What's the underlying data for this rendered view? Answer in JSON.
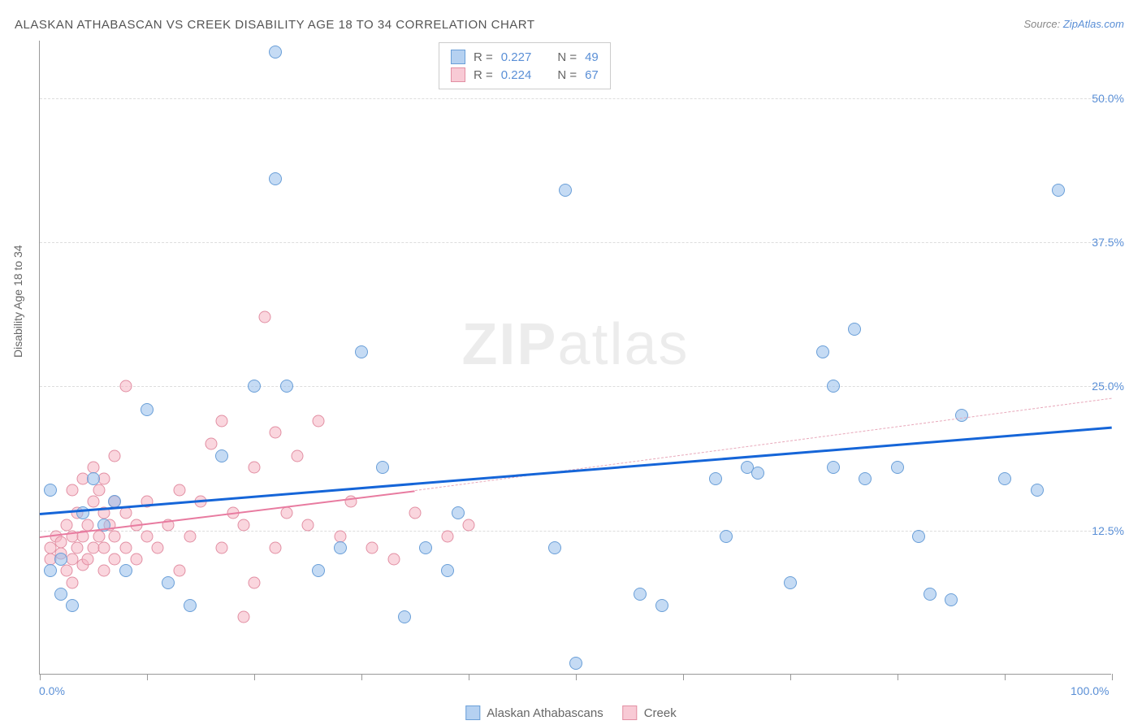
{
  "title": "ALASKAN ATHABASCAN VS CREEK DISABILITY AGE 18 TO 34 CORRELATION CHART",
  "source_prefix": "Source: ",
  "source_link": "ZipAtlas.com",
  "ylabel": "Disability Age 18 to 34",
  "watermark": {
    "bold": "ZIP",
    "light": "atlas"
  },
  "chart": {
    "type": "scatter",
    "xlim": [
      0,
      100
    ],
    "ylim": [
      0,
      55
    ],
    "x_ticks": [
      0,
      10,
      20,
      30,
      40,
      50,
      60,
      70,
      80,
      90,
      100
    ],
    "x_tick_labels": {
      "0": "0.0%",
      "100": "100.0%"
    },
    "y_gridlines": [
      12.5,
      25.0,
      37.5,
      50.0
    ],
    "y_tick_labels": [
      "12.5%",
      "25.0%",
      "37.5%",
      "50.0%"
    ],
    "background_color": "#ffffff",
    "grid_color": "#dddddd",
    "axis_color": "#999999",
    "label_color": "#5a8fd6",
    "series": [
      {
        "name": "Alaskan Athabascans",
        "color_fill": "rgba(150,190,235,0.55)",
        "color_stroke": "#6a9fd8",
        "marker_class": "pt-blue",
        "R": "0.227",
        "N": "49",
        "trend": {
          "x1": 0,
          "y1": 14.0,
          "x2": 100,
          "y2": 21.5,
          "color": "#1565d8",
          "style": "solid",
          "width": 3
        },
        "points": [
          [
            1,
            9
          ],
          [
            1,
            16
          ],
          [
            2,
            10
          ],
          [
            2,
            7
          ],
          [
            3,
            6
          ],
          [
            4,
            14
          ],
          [
            5,
            17
          ],
          [
            6,
            13
          ],
          [
            7,
            15
          ],
          [
            8,
            9
          ],
          [
            10,
            23
          ],
          [
            12,
            8
          ],
          [
            14,
            6
          ],
          [
            17,
            19
          ],
          [
            20,
            25
          ],
          [
            22,
            43
          ],
          [
            22,
            54
          ],
          [
            23,
            25
          ],
          [
            26,
            9
          ],
          [
            28,
            11
          ],
          [
            30,
            28
          ],
          [
            32,
            18
          ],
          [
            34,
            5
          ],
          [
            36,
            11
          ],
          [
            38,
            9
          ],
          [
            39,
            14
          ],
          [
            48,
            11
          ],
          [
            49,
            42
          ],
          [
            50,
            1
          ],
          [
            56,
            7
          ],
          [
            58,
            6
          ],
          [
            63,
            17
          ],
          [
            64,
            12
          ],
          [
            66,
            18
          ],
          [
            67,
            17.5
          ],
          [
            70,
            8
          ],
          [
            73,
            28
          ],
          [
            74,
            18
          ],
          [
            74,
            25
          ],
          [
            76,
            30
          ],
          [
            77,
            17
          ],
          [
            80,
            18
          ],
          [
            82,
            12
          ],
          [
            83,
            7
          ],
          [
            85,
            6.5
          ],
          [
            86,
            22.5
          ],
          [
            90,
            17
          ],
          [
            93,
            16
          ],
          [
            95,
            42
          ]
        ]
      },
      {
        "name": "Creek",
        "color_fill": "rgba(245,180,195,0.55)",
        "color_stroke": "#e28fa3",
        "marker_class": "pt-pink",
        "R": "0.224",
        "N": "67",
        "trend_solid": {
          "x1": 0,
          "y1": 12.0,
          "x2": 35,
          "y2": 16.0,
          "color": "#e87ba0",
          "style": "solid",
          "width": 2.5
        },
        "trend_dash": {
          "x1": 35,
          "y1": 16.0,
          "x2": 100,
          "y2": 24.0,
          "color": "#e8a8ba",
          "style": "dashed",
          "width": 1.5
        },
        "points": [
          [
            1,
            10
          ],
          [
            1,
            11
          ],
          [
            1.5,
            12
          ],
          [
            2,
            10.5
          ],
          [
            2,
            11.5
          ],
          [
            2.5,
            9
          ],
          [
            2.5,
            13
          ],
          [
            3,
            8
          ],
          [
            3,
            10
          ],
          [
            3,
            12
          ],
          [
            3,
            16
          ],
          [
            3.5,
            11
          ],
          [
            3.5,
            14
          ],
          [
            4,
            9.5
          ],
          [
            4,
            12
          ],
          [
            4,
            17
          ],
          [
            4.5,
            10
          ],
          [
            4.5,
            13
          ],
          [
            5,
            11
          ],
          [
            5,
            15
          ],
          [
            5,
            18
          ],
          [
            5.5,
            12
          ],
          [
            5.5,
            16
          ],
          [
            6,
            9
          ],
          [
            6,
            11
          ],
          [
            6,
            14
          ],
          [
            6,
            17
          ],
          [
            6.5,
            13
          ],
          [
            7,
            10
          ],
          [
            7,
            12
          ],
          [
            7,
            15
          ],
          [
            7,
            19
          ],
          [
            8,
            11
          ],
          [
            8,
            14
          ],
          [
            8,
            25
          ],
          [
            9,
            10
          ],
          [
            9,
            13
          ],
          [
            10,
            12
          ],
          [
            10,
            15
          ],
          [
            11,
            11
          ],
          [
            12,
            13
          ],
          [
            13,
            9
          ],
          [
            13,
            16
          ],
          [
            14,
            12
          ],
          [
            15,
            15
          ],
          [
            16,
            20
          ],
          [
            17,
            11
          ],
          [
            17,
            22
          ],
          [
            18,
            14
          ],
          [
            19,
            5
          ],
          [
            19,
            13
          ],
          [
            20,
            8
          ],
          [
            20,
            18
          ],
          [
            21,
            31
          ],
          [
            22,
            11
          ],
          [
            22,
            21
          ],
          [
            23,
            14
          ],
          [
            24,
            19
          ],
          [
            25,
            13
          ],
          [
            26,
            22
          ],
          [
            28,
            12
          ],
          [
            29,
            15
          ],
          [
            31,
            11
          ],
          [
            33,
            10
          ],
          [
            35,
            14
          ],
          [
            38,
            12
          ],
          [
            40,
            13
          ]
        ]
      }
    ]
  },
  "legend_top": {
    "r_label": "R =",
    "n_label": "N ="
  },
  "legend_bottom": [
    {
      "swatch": "sq-blue",
      "label": "Alaskan Athabascans"
    },
    {
      "swatch": "sq-pink",
      "label": "Creek"
    }
  ]
}
